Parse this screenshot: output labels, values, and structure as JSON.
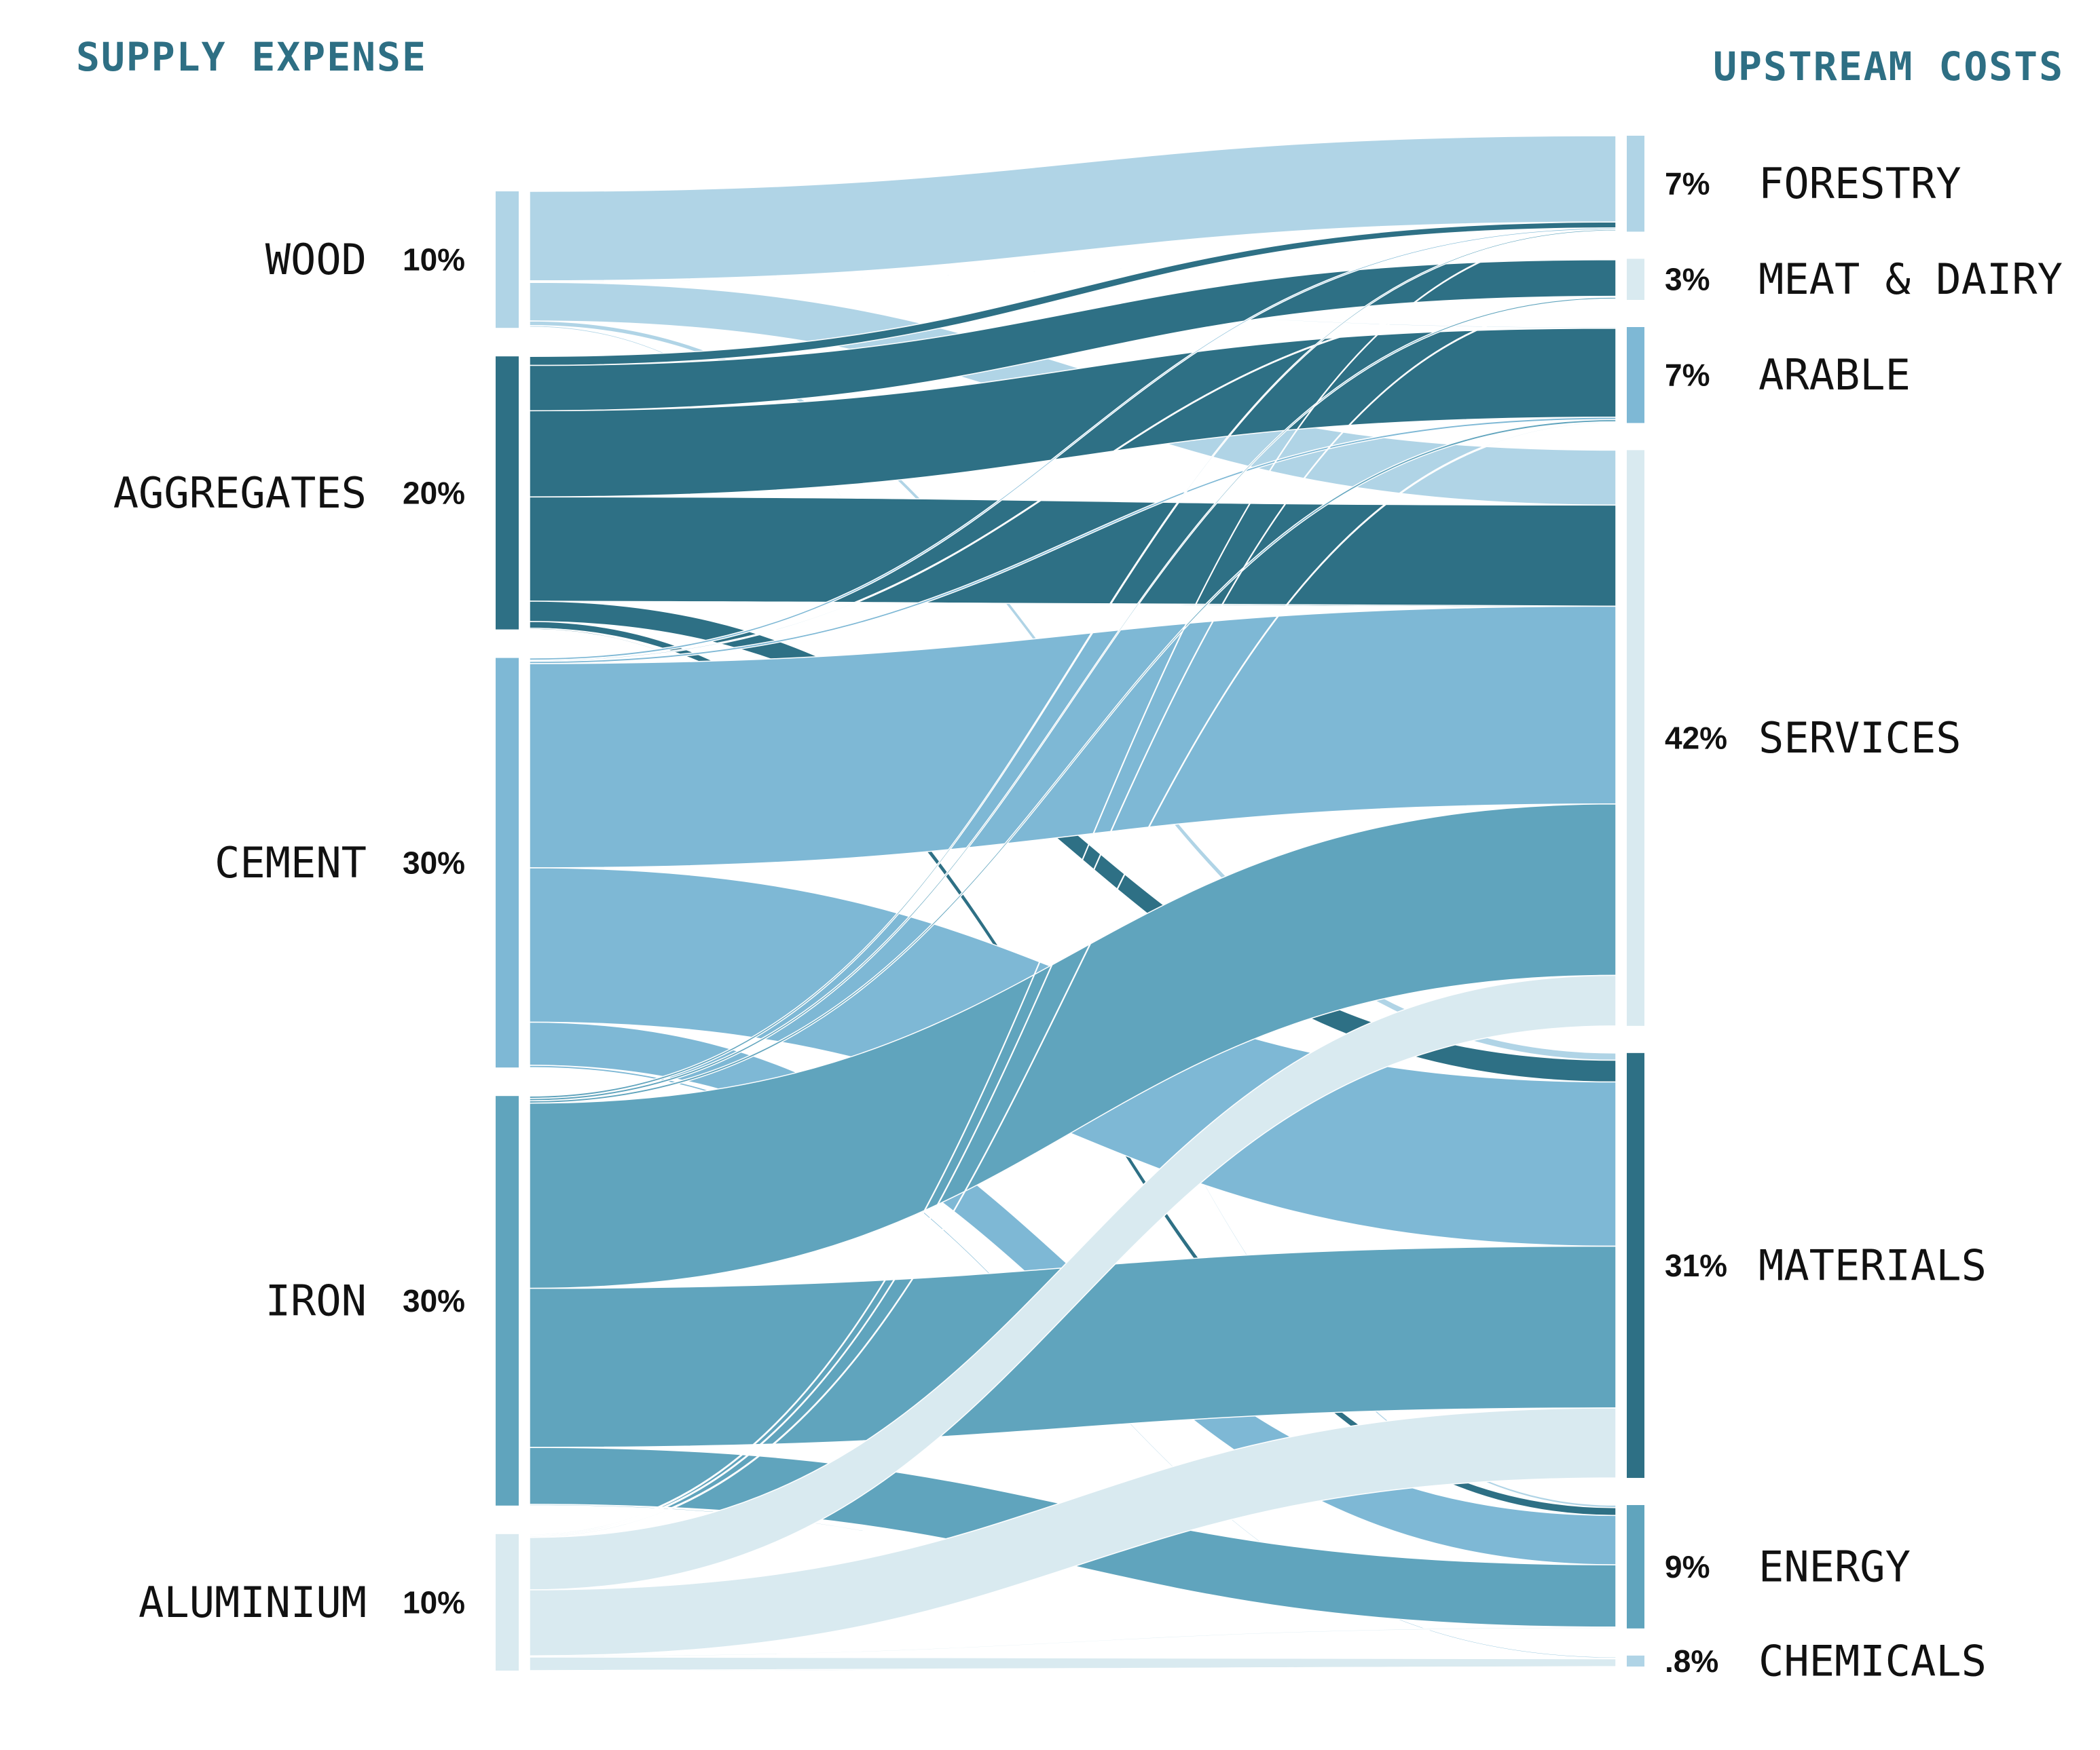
{
  "headers": {
    "left": "SUPPLY EXPENSE",
    "right": "UPSTREAM COSTS",
    "color": "#2e6f84"
  },
  "sources": [
    {
      "id": "wood",
      "name": "WOOD",
      "pct_label": "10%",
      "share": 10,
      "color": "#b0d4e6"
    },
    {
      "id": "aggregates",
      "name": "AGGREGATES",
      "pct_label": "20%",
      "share": 20,
      "color": "#2e7085"
    },
    {
      "id": "cement",
      "name": "CEMENT",
      "pct_label": "30%",
      "share": 30,
      "color": "#7eb8d5"
    },
    {
      "id": "iron",
      "name": "IRON",
      "pct_label": "30%",
      "share": 30,
      "color": "#60a4bd"
    },
    {
      "id": "aluminium",
      "name": "ALUMINIUM",
      "pct_label": "10%",
      "share": 10,
      "color": "#d9eaf0"
    }
  ],
  "targets": [
    {
      "id": "forestry",
      "name": "FORESTRY",
      "pct_label": "7%",
      "share": 7,
      "color": "#b0d4e6"
    },
    {
      "id": "meat-dairy",
      "name": "MEAT & DAIRY",
      "pct_label": "3%",
      "share": 3,
      "color": "#d9eaf0"
    },
    {
      "id": "arable",
      "name": "ARABLE",
      "pct_label": "7%",
      "share": 7,
      "color": "#7eb8d5"
    },
    {
      "id": "services",
      "name": "SERVICES",
      "pct_label": "42%",
      "share": 42,
      "color": "#d9eaf0"
    },
    {
      "id": "materials",
      "name": "MATERIALS",
      "pct_label": "31%",
      "share": 31,
      "color": "#2e7085"
    },
    {
      "id": "energy",
      "name": "ENERGY",
      "pct_label": "9%",
      "share": 9,
      "color": "#60a4bd"
    },
    {
      "id": "chemicals",
      "name": "CHEMICALS",
      "pct_label": ".8%",
      "share": 0.8,
      "color": "#b0d4e6"
    }
  ],
  "flows": [
    {
      "source": "wood",
      "target": "forestry",
      "value": 5.8
    },
    {
      "source": "wood",
      "target": "meat-dairy",
      "value": 0.05
    },
    {
      "source": "wood",
      "target": "arable",
      "value": 0.05
    },
    {
      "source": "wood",
      "target": "services",
      "value": 2.5
    },
    {
      "source": "wood",
      "target": "materials",
      "value": 0.3
    },
    {
      "source": "wood",
      "target": "energy",
      "value": 0.1
    },
    {
      "source": "wood",
      "target": "chemicals",
      "value": 0.05
    },
    {
      "source": "aggregates",
      "target": "forestry",
      "value": 0.4
    },
    {
      "source": "aggregates",
      "target": "meat-dairy",
      "value": 2.0
    },
    {
      "source": "aggregates",
      "target": "arable",
      "value": 3.8
    },
    {
      "source": "aggregates",
      "target": "services",
      "value": 4.6
    },
    {
      "source": "aggregates",
      "target": "materials",
      "value": 0.9
    },
    {
      "source": "aggregates",
      "target": "energy",
      "value": 0.3
    },
    {
      "source": "aggregates",
      "target": "chemicals",
      "value": 0.05
    },
    {
      "source": "cement",
      "target": "forestry",
      "value": 0.1
    },
    {
      "source": "cement",
      "target": "meat-dairy",
      "value": 0.05
    },
    {
      "source": "cement",
      "target": "arable",
      "value": 0.1
    },
    {
      "source": "cement",
      "target": "services",
      "value": 9.0
    },
    {
      "source": "cement",
      "target": "materials",
      "value": 6.8
    },
    {
      "source": "cement",
      "target": "energy",
      "value": 1.9
    },
    {
      "source": "cement",
      "target": "chemicals",
      "value": 0.1
    },
    {
      "source": "iron",
      "target": "forestry",
      "value": 0.1
    },
    {
      "source": "iron",
      "target": "meat-dairy",
      "value": 0.1
    },
    {
      "source": "iron",
      "target": "arable",
      "value": 0.1
    },
    {
      "source": "iron",
      "target": "services",
      "value": 7.8
    },
    {
      "source": "iron",
      "target": "materials",
      "value": 6.7
    },
    {
      "source": "iron",
      "target": "energy",
      "value": 2.4
    },
    {
      "source": "iron",
      "target": "chemicals",
      "value": 0.05
    },
    {
      "source": "aluminium",
      "target": "forestry",
      "value": 0.05
    },
    {
      "source": "aluminium",
      "target": "meat-dairy",
      "value": 0.05
    },
    {
      "source": "aluminium",
      "target": "arable",
      "value": 0.05
    },
    {
      "source": "aluminium",
      "target": "services",
      "value": 2.3
    },
    {
      "source": "aluminium",
      "target": "materials",
      "value": 2.9
    },
    {
      "source": "aluminium",
      "target": "energy",
      "value": 0.05
    },
    {
      "source": "aluminium",
      "target": "chemicals",
      "value": 0.6
    }
  ]
}
